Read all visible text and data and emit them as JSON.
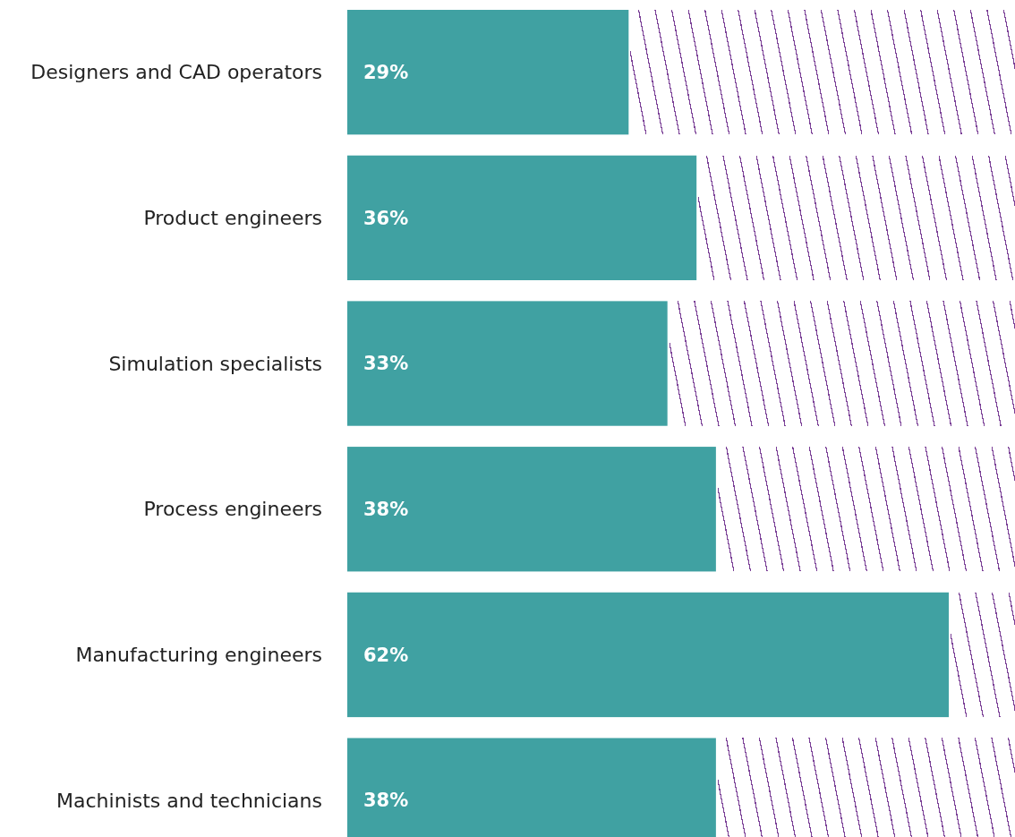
{
  "chart_data": {
    "type": "bar",
    "orientation": "horizontal",
    "categories": [
      "Designers and CAD operators",
      "Product engineers",
      "Simulation specialists",
      "Process engineers",
      "Manufacturing engineers",
      "Machinists and technicians"
    ],
    "values": [
      29,
      36,
      33,
      38,
      62,
      38
    ],
    "value_labels": [
      "29%",
      "36%",
      "33%",
      "38%",
      "62%",
      "38%"
    ],
    "color": "#40a1a2"
  }
}
